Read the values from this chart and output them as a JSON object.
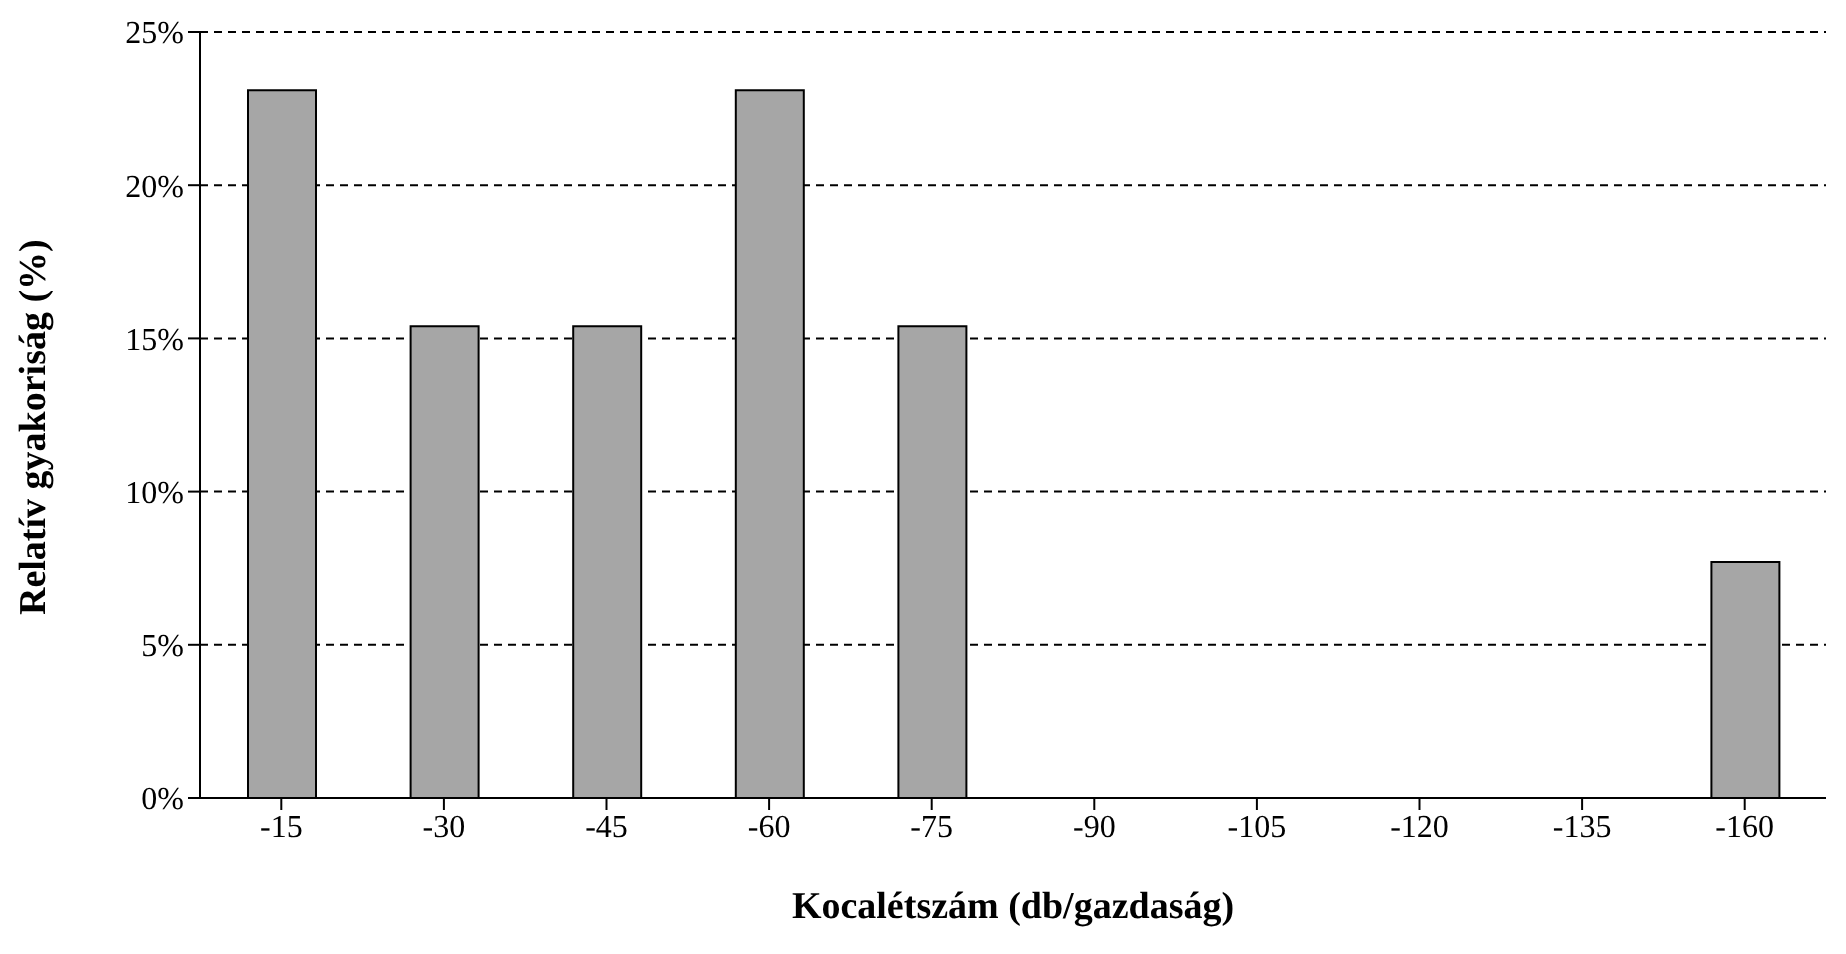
{
  "chart_data": {
    "type": "bar",
    "xlabel": "Kocalétszám (db/gazdaság)",
    "ylabel": "Relatív gyakoriság (%)",
    "categories": [
      "-15",
      "-30",
      "-45",
      "-60",
      "-75",
      "-90",
      "-105",
      "-120",
      "-135",
      "-160"
    ],
    "values": [
      23.1,
      15.4,
      15.4,
      23.1,
      15.4,
      0,
      0,
      0,
      0,
      7.7
    ],
    "color": "#a6a6a6",
    "ylim": [
      0,
      25
    ],
    "yticks": [
      {
        "value": 0,
        "label": "0%"
      },
      {
        "value": 5,
        "label": "5%"
      },
      {
        "value": 10,
        "label": "10%"
      },
      {
        "value": 15,
        "label": "15%"
      },
      {
        "value": 20,
        "label": "20%"
      },
      {
        "value": 25,
        "label": "25%"
      }
    ],
    "grid": "y",
    "legend": false
  }
}
